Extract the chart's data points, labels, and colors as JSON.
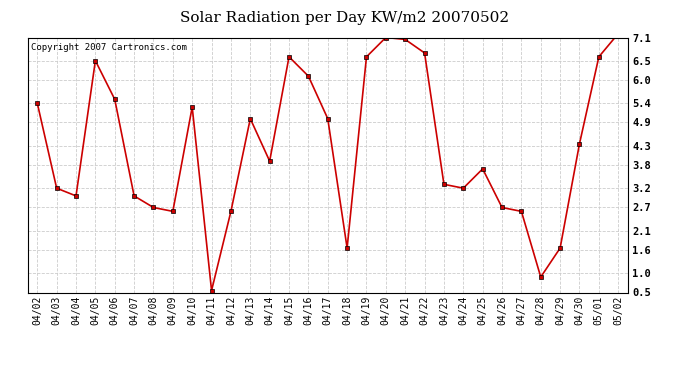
{
  "title": "Solar Radiation per Day KW/m2 20070502",
  "copyright": "Copyright 2007 Cartronics.com",
  "dates": [
    "04/02",
    "04/03",
    "04/04",
    "04/05",
    "04/06",
    "04/07",
    "04/08",
    "04/09",
    "04/10",
    "04/11",
    "04/12",
    "04/13",
    "04/14",
    "04/15",
    "04/16",
    "04/17",
    "04/18",
    "04/19",
    "04/20",
    "04/21",
    "04/22",
    "04/23",
    "04/24",
    "04/25",
    "04/26",
    "04/27",
    "04/28",
    "04/29",
    "04/30",
    "05/01",
    "05/02"
  ],
  "values": [
    5.4,
    3.2,
    3.0,
    6.5,
    5.5,
    3.0,
    2.7,
    2.6,
    5.3,
    0.55,
    2.6,
    5.0,
    3.9,
    6.6,
    6.1,
    5.0,
    1.65,
    6.6,
    7.1,
    7.05,
    6.7,
    3.3,
    3.2,
    3.7,
    2.7,
    2.6,
    0.9,
    1.65,
    4.35,
    6.6,
    7.2
  ],
  "line_color": "#cc0000",
  "marker": "s",
  "marker_size": 3,
  "bg_color": "#ffffff",
  "grid_color": "#aaaaaa",
  "ylim_min": 0.5,
  "ylim_max": 7.1,
  "yticks": [
    0.5,
    1.0,
    1.6,
    2.1,
    2.7,
    3.2,
    3.8,
    4.3,
    4.9,
    5.4,
    6.0,
    6.5,
    7.1
  ],
  "title_fontsize": 11,
  "copyright_fontsize": 6.5,
  "tick_fontsize": 7,
  "ytick_fontsize": 7.5
}
